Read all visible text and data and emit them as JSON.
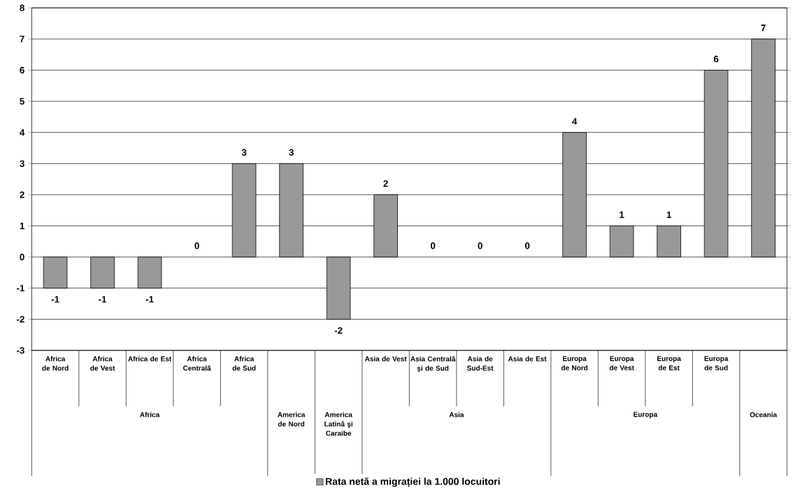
{
  "chart_data": {
    "type": "bar",
    "categories": [
      "Africa de Nord",
      "Africa de Vest",
      "Africa de Est",
      "Africa Centrală",
      "Africa de Sud",
      null,
      null,
      "Asia de Vest",
      "Asia Centrală şi de Sud",
      "Asia de Sud-Est",
      "Asia de Est",
      "Europa de Nord",
      "Europa de Vest",
      "Europa de Est",
      "Europa de Sud",
      null
    ],
    "series": [
      {
        "name": "Rata netă a migrației la 1.000 locuitori",
        "color": "#999999",
        "values": [
          -1,
          -1,
          -1,
          0,
          3,
          3,
          -2,
          2,
          0,
          0,
          0,
          4,
          1,
          1,
          6,
          7
        ]
      }
    ],
    "annotations": [
      "Africa",
      "America de Nord",
      "America Latină şi Caraibe",
      "Asia",
      "Europa",
      "Oceania"
    ],
    "ylim": [
      -3,
      8
    ],
    "yticks": [
      -3,
      -2,
      -1,
      0,
      1,
      2,
      3,
      4,
      5,
      6,
      7,
      8
    ],
    "grid": "y",
    "data_labels": true,
    "legend": "bottom"
  }
}
